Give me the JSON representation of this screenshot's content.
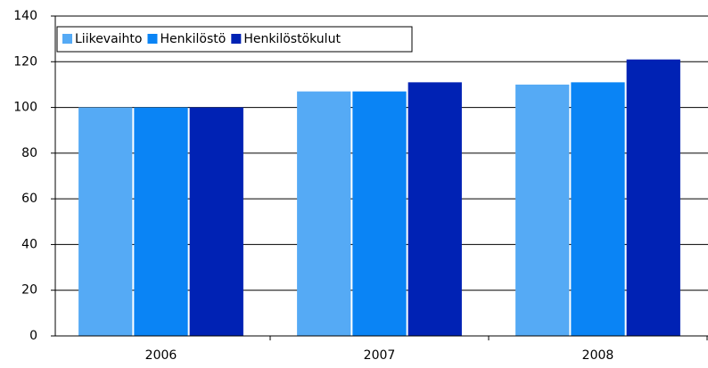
{
  "chart_data": {
    "type": "bar",
    "categories": [
      "2006",
      "2007",
      "2008"
    ],
    "series": [
      {
        "name": "Liikevaihto",
        "color": "#55aaf5",
        "values": [
          100,
          107,
          110
        ]
      },
      {
        "name": "Henkilöstö",
        "color": "#0a84f5",
        "values": [
          100,
          107,
          111
        ]
      },
      {
        "name": "Henkilöstökulut",
        "color": "#0022b4",
        "values": [
          100,
          111,
          121
        ]
      }
    ],
    "ylim": [
      0,
      140
    ],
    "yticks": [
      0,
      20,
      40,
      60,
      80,
      100,
      120,
      140
    ],
    "grid": true,
    "legend": "top-left"
  }
}
